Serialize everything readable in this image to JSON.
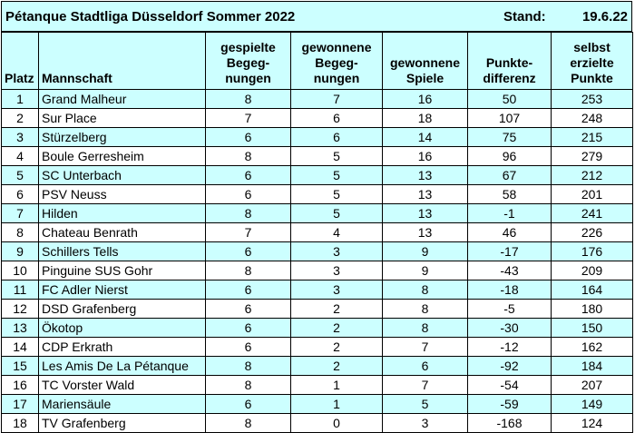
{
  "header": {
    "title": "Pétanque Stadtliga Düsseldorf Sommer 2022",
    "stand_label": "Stand:",
    "date": "19.6.22"
  },
  "columns": [
    "Platz",
    "Mannschaft",
    "gespielte Begeg-nungen",
    "gewonnene Begeg-nungen",
    "gewonnene Spiele",
    "Punkte-differenz",
    "selbst erzielte Punkte"
  ],
  "column_lines": [
    [
      "Platz"
    ],
    [
      "Mannschaft"
    ],
    [
      "gespielte",
      "Begeg-",
      "nungen"
    ],
    [
      "gewonnene",
      "Begeg-",
      "nungen"
    ],
    [
      "gewonnene",
      "Spiele"
    ],
    [
      "Punkte-",
      "differenz"
    ],
    [
      "selbst",
      "erzielte",
      "Punkte"
    ]
  ],
  "rows": [
    [
      "1",
      "Grand Malheur",
      "8",
      "7",
      "16",
      "50",
      "253"
    ],
    [
      "2",
      "Sur Place",
      "7",
      "6",
      "18",
      "107",
      "248"
    ],
    [
      "3",
      "Stürzelberg",
      "6",
      "6",
      "14",
      "75",
      "215"
    ],
    [
      "4",
      "Boule Gerresheim",
      "8",
      "5",
      "16",
      "96",
      "279"
    ],
    [
      "5",
      "SC Unterbach",
      "6",
      "5",
      "13",
      "67",
      "212"
    ],
    [
      "6",
      "PSV Neuss",
      "6",
      "5",
      "13",
      "58",
      "201"
    ],
    [
      "7",
      "Hilden",
      "8",
      "5",
      "13",
      "-1",
      "241"
    ],
    [
      "8",
      "Chateau Benrath",
      "7",
      "4",
      "13",
      "46",
      "226"
    ],
    [
      "9",
      "Schillers Tells",
      "6",
      "3",
      "9",
      "-17",
      "176"
    ],
    [
      "10",
      "Pinguine SUS Gohr",
      "8",
      "3",
      "9",
      "-43",
      "209"
    ],
    [
      "11",
      "FC Adler Nierst",
      "6",
      "3",
      "8",
      "-18",
      "164"
    ],
    [
      "12",
      "DSD Grafenberg",
      "6",
      "2",
      "8",
      "-5",
      "180"
    ],
    [
      "13",
      "Ökotop",
      "6",
      "2",
      "8",
      "-30",
      "150"
    ],
    [
      "14",
      "CDP Erkrath",
      "6",
      "2",
      "7",
      "-12",
      "162"
    ],
    [
      "15",
      "Les Amis De La Pétanque",
      "8",
      "2",
      "6",
      "-92",
      "184"
    ],
    [
      "16",
      "TC Vorster Wald",
      "8",
      "1",
      "7",
      "-54",
      "207"
    ],
    [
      "17",
      "Mariensäule",
      "6",
      "1",
      "5",
      "-59",
      "149"
    ],
    [
      "18",
      "TV Grafenberg",
      "8",
      "0",
      "3",
      "-168",
      "124"
    ]
  ],
  "colors": {
    "header_bg": "#CCFFFF",
    "row_alt_bg": "#CCFFFF",
    "row_bg": "#FFFFFF",
    "border": "#000000"
  }
}
